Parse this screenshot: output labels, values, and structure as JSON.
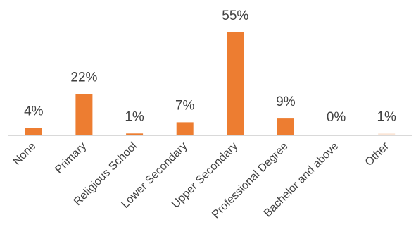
{
  "chart_data": {
    "type": "bar",
    "categories": [
      "None",
      "Primary",
      "Religious School",
      "Lower Secondary",
      "Upper Secondary",
      "Professional Degree",
      "Bachelor and above",
      "Other"
    ],
    "values": [
      4,
      22,
      1,
      7,
      55,
      9,
      0,
      1
    ],
    "data_labels": [
      "4%",
      "22%",
      "1%",
      "7%",
      "55%",
      "9%",
      "0%",
      "1%"
    ],
    "bar_colors": [
      "#ED7D31",
      "#ED7D31",
      "#ED7D31",
      "#ED7D31",
      "#ED7D31",
      "#ED7D31",
      "#ED7D31",
      "#FBE5D6"
    ],
    "axis_color": "#D9D9D9",
    "ylim": [
      0,
      55
    ],
    "grid": false,
    "legend": false
  }
}
